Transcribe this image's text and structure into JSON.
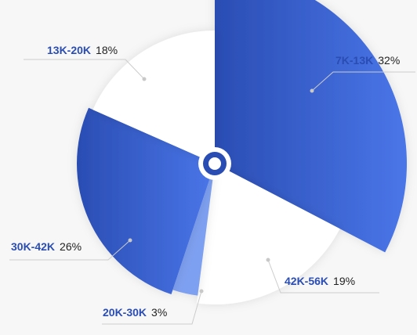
{
  "chart_data": {
    "type": "pie",
    "variant": "rose",
    "title": "",
    "slices": [
      {
        "label": "7K-13K",
        "percent": 32,
        "value_text": "32%",
        "emphasis": true
      },
      {
        "label": "42K-56K",
        "percent": 19,
        "value_text": "19%",
        "emphasis": false
      },
      {
        "label": "20K-30K",
        "percent": 3,
        "value_text": "3%",
        "emphasis": true
      },
      {
        "label": "30K-42K",
        "percent": 26,
        "value_text": "26%",
        "emphasis": true
      },
      {
        "label": "13K-20K",
        "percent": 18,
        "value_text": "18%",
        "emphasis": false
      }
    ],
    "legend": "none",
    "grid": false
  },
  "colors": {
    "background": "#f7f7f7",
    "gradient_start": "#2a4db3",
    "gradient_end": "#4a76e8",
    "light_slice": "#7ea0f0",
    "plain_slice": "#ffffff",
    "label_text": "#2a4db3",
    "value_text": "#222222",
    "leader": "#cccccc"
  }
}
